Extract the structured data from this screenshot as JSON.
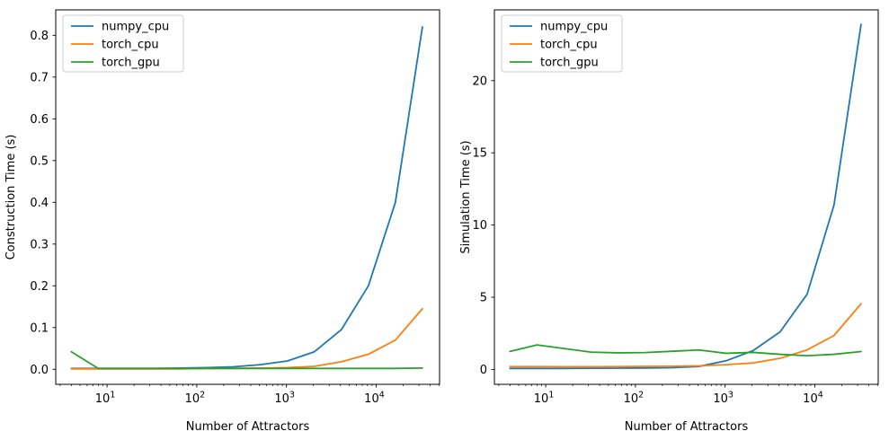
{
  "figure": {
    "background": "#ffffff",
    "spine_color": "#000000",
    "legend_edge_color": "#cccccc"
  },
  "series_colors": {
    "numpy_cpu": "#1f77b4",
    "torch_cpu": "#ff7f0e",
    "torch_gpu": "#2ca02c"
  },
  "chart_data": [
    {
      "type": "line",
      "title": "",
      "xlabel": "Number of Attractors",
      "ylabel": "Construction Time (s)",
      "xscale": "log",
      "grid": false,
      "legend_position": "upper-left",
      "xlim": [
        2.68,
        50900
      ],
      "ylim": [
        -0.036,
        0.861
      ],
      "xticks": [
        10,
        100,
        1000,
        10000
      ],
      "xtick_base": "10",
      "xtick_exponents": [
        "1",
        "2",
        "3",
        "4"
      ],
      "yticks": [
        0.0,
        0.1,
        0.2,
        0.3,
        0.4,
        0.5,
        0.6,
        0.7,
        0.8
      ],
      "ytick_labels": [
        "0.0",
        "0.1",
        "0.2",
        "0.3",
        "0.4",
        "0.5",
        "0.6",
        "0.7",
        "0.8"
      ],
      "x": [
        4,
        8,
        16,
        32,
        64,
        128,
        256,
        512,
        1024,
        2048,
        4096,
        8192,
        16384,
        32768
      ],
      "series": [
        {
          "name": "numpy_cpu",
          "color": "#1f77b4",
          "values": [
            0.002,
            0.002,
            0.002,
            0.002,
            0.003,
            0.004,
            0.006,
            0.011,
            0.02,
            0.042,
            0.095,
            0.2,
            0.4,
            0.82
          ]
        },
        {
          "name": "torch_cpu",
          "color": "#ff7f0e",
          "values": [
            0.001,
            0.001,
            0.001,
            0.001,
            0.001,
            0.002,
            0.002,
            0.003,
            0.004,
            0.007,
            0.018,
            0.036,
            0.07,
            0.145
          ]
        },
        {
          "name": "torch_gpu",
          "color": "#2ca02c",
          "values": [
            0.042,
            0.002,
            0.002,
            0.002,
            0.002,
            0.002,
            0.002,
            0.002,
            0.002,
            0.002,
            0.002,
            0.002,
            0.002,
            0.003
          ]
        }
      ]
    },
    {
      "type": "line",
      "title": "",
      "xlabel": "Number of Attractors",
      "ylabel": "Simulation Time (s)",
      "xscale": "log",
      "grid": false,
      "legend_position": "upper-left",
      "xlim": [
        2.68,
        50900
      ],
      "ylim": [
        -1.03,
        24.9
      ],
      "xticks": [
        10,
        100,
        1000,
        10000
      ],
      "xtick_base": "10",
      "xtick_exponents": [
        "1",
        "2",
        "3",
        "4"
      ],
      "yticks": [
        0,
        5,
        10,
        15,
        20
      ],
      "ytick_labels": [
        "0",
        "5",
        "10",
        "15",
        "20"
      ],
      "x": [
        4,
        8,
        16,
        32,
        64,
        128,
        256,
        512,
        1024,
        2048,
        4096,
        8192,
        16384,
        32768
      ],
      "series": [
        {
          "name": "numpy_cpu",
          "color": "#1f77b4",
          "values": [
            0.07,
            0.07,
            0.07,
            0.08,
            0.09,
            0.1,
            0.12,
            0.21,
            0.6,
            1.3,
            2.6,
            5.2,
            11.4,
            23.9
          ]
        },
        {
          "name": "torch_cpu",
          "color": "#ff7f0e",
          "values": [
            0.2,
            0.2,
            0.19,
            0.19,
            0.2,
            0.21,
            0.22,
            0.25,
            0.33,
            0.45,
            0.77,
            1.35,
            2.35,
            4.55
          ]
        },
        {
          "name": "torch_gpu",
          "color": "#2ca02c",
          "values": [
            1.25,
            1.7,
            1.45,
            1.2,
            1.15,
            1.17,
            1.26,
            1.35,
            1.12,
            1.18,
            1.05,
            0.95,
            1.05,
            1.24
          ]
        }
      ]
    }
  ]
}
